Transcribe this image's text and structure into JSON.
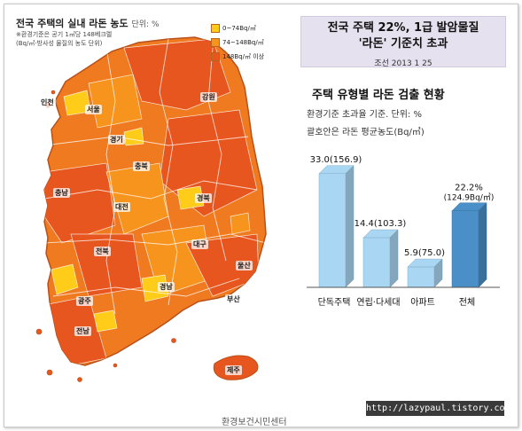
{
  "map": {
    "title": "전국 주택의 실내 라돈 농도",
    "unit": "단위: %",
    "notes": [
      "※환경기준은 공기 1㎥당 148베크렐",
      "(Bq/㎥·방사성 물질의 농도 단위)"
    ],
    "legend": [
      {
        "label": "0~74Bq/㎥",
        "color": "#ffcc1a"
      },
      {
        "label": "74~148Bq/㎥",
        "color": "#f7941d"
      },
      {
        "label": "148Bq/㎥ 이상",
        "color": "#e8561f"
      }
    ],
    "regions": [
      "인천",
      "서울",
      "강원",
      "경기",
      "충북",
      "충남",
      "대전",
      "경북",
      "대구",
      "전북",
      "울산",
      "경남",
      "부산",
      "광주",
      "전남",
      "제주"
    ],
    "source": "환경보건시민센터"
  },
  "headline": {
    "line1": "전국 주택 22%, 1급 발암물질",
    "line2": "'라돈' 기준치 초과",
    "date": "조선 2013 1 25"
  },
  "chart": {
    "title": "주택 유형별 라돈 검출 현황",
    "subtitle1": "환경기준 초과율 기준. 단위: %",
    "subtitle2": "괄호안은 라돈 평균농도(Bq/㎥)"
  },
  "watermark": "http://lazypaul.tistory.com",
  "chart_data": {
    "type": "bar",
    "title": "주택 유형별 라돈 검출 현황",
    "subtitle": "환경기준 초과율 기준. 단위: %",
    "categories": [
      "단독주택",
      "연립·다세대",
      "아파트",
      "전체"
    ],
    "values": [
      33.0,
      14.4,
      5.9,
      22.2
    ],
    "value_labels": [
      "33.0(156.9)",
      "14.4(103.3)",
      "5.9(75.0)",
      "22.2%"
    ],
    "secondary_labels": [
      "",
      "",
      "",
      "(124.9Bq/㎥)"
    ],
    "secondary_values": [
      156.9,
      103.3,
      75.0,
      124.9
    ],
    "secondary_note": "괄호안은 라돈 평균농도(Bq/㎥)",
    "ylim": [
      0,
      35
    ],
    "colors": [
      "#a9d6f2",
      "#a9d6f2",
      "#a9d6f2",
      "#4a8fc8"
    ],
    "grid": false,
    "legend": "none"
  }
}
